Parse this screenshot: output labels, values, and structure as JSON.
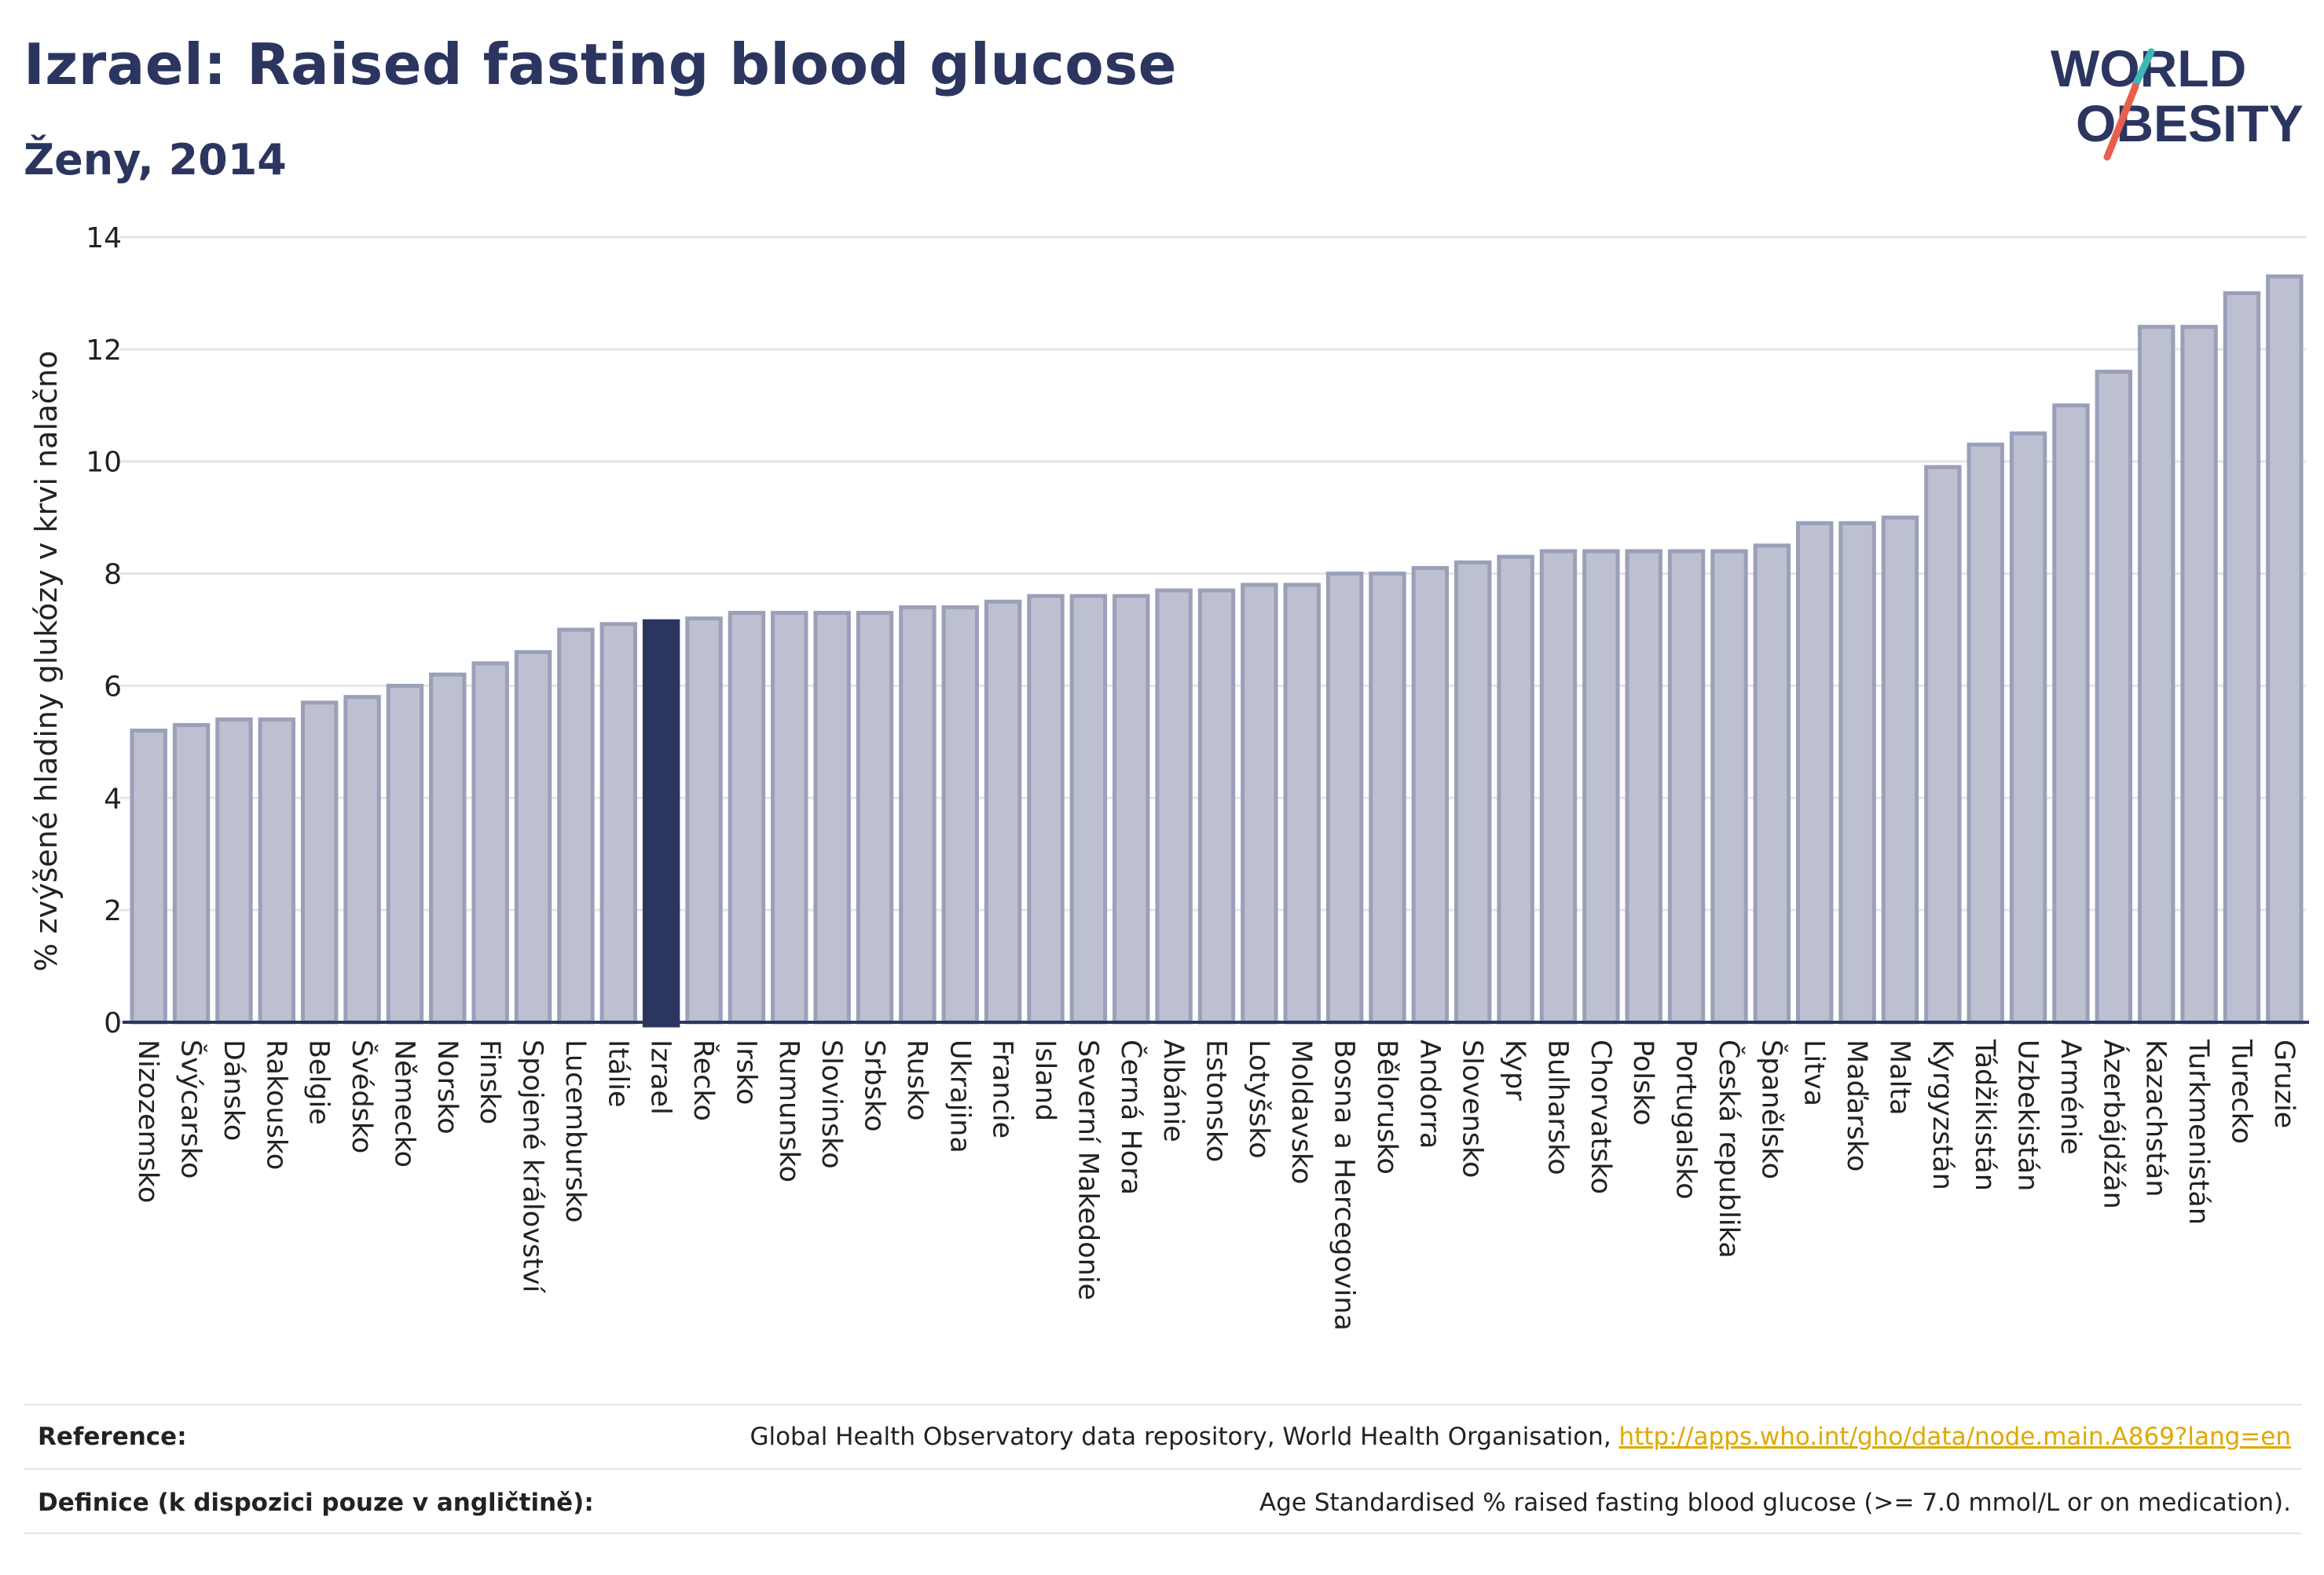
{
  "header": {
    "title": "Izrael: Raised fasting blood glucose",
    "subtitle": "Ženy, 2014"
  },
  "logo": {
    "line1": "WORLD",
    "line2": "OBESITY",
    "colors": {
      "text": "#2b3560",
      "slash_top": "#3fb8b5",
      "slash_bottom": "#e8604c"
    }
  },
  "chart_data": {
    "type": "bar",
    "title": "",
    "xlabel": "",
    "ylabel": "% zvýšené hladiny glukózy v krvi nalačno",
    "ylim": [
      0,
      14
    ],
    "yticks": [
      0,
      2,
      4,
      6,
      8,
      10,
      12,
      14
    ],
    "grid": true,
    "highlight": "Izrael",
    "colors": {
      "bar": "#bcc0d0",
      "bar_border": "#9aa0b8",
      "highlight": "#2b3560",
      "grid": "#e5e5e5",
      "axis": "#2b3560"
    },
    "categories": [
      "Nizozemsko",
      "Švýcarsko",
      "Dánsko",
      "Rakousko",
      "Belgie",
      "Švédsko",
      "Německo",
      "Norsko",
      "Finsko",
      "Spojené království",
      "Lucembursko",
      "Itálie",
      "Izrael",
      "Řecko",
      "Irsko",
      "Rumunsko",
      "Slovinsko",
      "Srbsko",
      "Rusko",
      "Ukrajina",
      "Francie",
      "Island",
      "Severní Makedonie",
      "Černá Hora",
      "Albánie",
      "Estonsko",
      "Lotyšsko",
      "Moldavsko",
      "Bosna a Hercegovina",
      "Bělorusko",
      "Andorra",
      "Slovensko",
      "Kypr",
      "Bulharsko",
      "Chorvatsko",
      "Polsko",
      "Portugalsko",
      "Česká republika",
      "Španělsko",
      "Litva",
      "Maďarsko",
      "Malta",
      "Kyrgyzstán",
      "Tádžikistán",
      "Uzbekistán",
      "Arménie",
      "Ázerbájdžán",
      "Kazachstán",
      "Turkmenistán",
      "Turecko",
      "Gruzie"
    ],
    "values": [
      5.2,
      5.3,
      5.4,
      5.4,
      5.7,
      5.8,
      6.0,
      6.2,
      6.4,
      6.6,
      7.0,
      7.1,
      7.15,
      7.2,
      7.3,
      7.3,
      7.3,
      7.3,
      7.4,
      7.4,
      7.5,
      7.6,
      7.6,
      7.6,
      7.7,
      7.7,
      7.8,
      7.8,
      8.0,
      8.0,
      8.1,
      8.2,
      8.3,
      8.4,
      8.4,
      8.4,
      8.4,
      8.4,
      8.5,
      8.9,
      8.9,
      9.0,
      9.9,
      10.3,
      10.5,
      11.0,
      11.6,
      12.4,
      12.4,
      13.0,
      13.3
    ]
  },
  "footer": {
    "reference_label": "Reference:",
    "reference_text": "Global Health Observatory data repository, World Health Organisation, ",
    "reference_link": "http://apps.who.int/gho/data/node.main.A869?lang=en",
    "definition_label": "Definice (k dispozici pouze v angličtině):",
    "definition_text": "Age Standardised % raised fasting blood glucose (>= 7.0 mmol/L or on medication)."
  }
}
